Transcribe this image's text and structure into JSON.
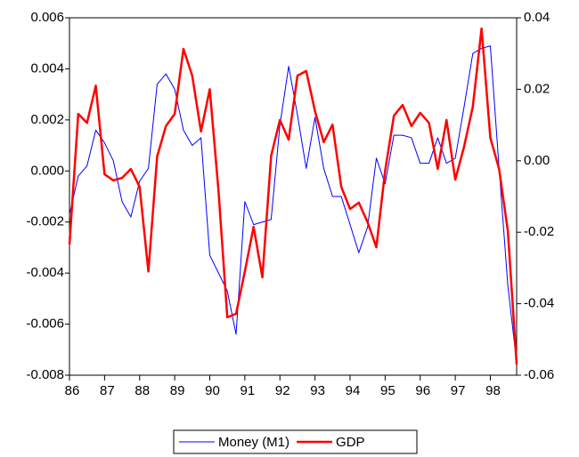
{
  "chart_data": {
    "type": "line",
    "x": [
      1986,
      1986.25,
      1986.5,
      1986.75,
      1987,
      1987.25,
      1987.5,
      1987.75,
      1988,
      1988.25,
      1988.5,
      1988.75,
      1989,
      1989.25,
      1989.5,
      1989.75,
      1990,
      1990.25,
      1990.5,
      1990.75,
      1991,
      1991.25,
      1991.5,
      1991.75,
      1992,
      1992.25,
      1992.5,
      1992.75,
      1993,
      1993.25,
      1993.5,
      1993.75,
      1994,
      1994.25,
      1994.5,
      1994.75,
      1995,
      1995.25,
      1995.5,
      1995.75,
      1996,
      1996.25,
      1996.5,
      1996.75,
      1997,
      1997.25,
      1997.5,
      1997.75,
      1998,
      1998.25,
      1998.5,
      1998.75
    ],
    "series": [
      {
        "name": "Money (M1)",
        "color": "#0000ff",
        "values": [
          -0.0017,
          -0.0002,
          0.0002,
          0.0016,
          0.0011,
          0.0004,
          -0.0012,
          -0.0018,
          -0.0004,
          0.0001,
          0.0034,
          0.0038,
          0.0032,
          0.0016,
          0.001,
          0.0013,
          -0.0033,
          -0.004,
          -0.0047,
          -0.0064,
          -0.0012,
          -0.0021,
          -0.002,
          -0.0019,
          0.0018,
          0.0041,
          0.0022,
          0.0001,
          0.0021,
          0.0001,
          -0.001,
          -0.001,
          -0.0021,
          -0.0032,
          -0.0022,
          0.0005,
          -0.0005,
          0.0014,
          0.0014,
          0.0013,
          0.0003,
          0.0003,
          0.0013,
          0.0003,
          0.0005,
          0.0025,
          0.0046,
          0.0048,
          0.0049,
          0.0001,
          -0.0045,
          -0.0075
        ]
      },
      {
        "name": "GDP",
        "color": "#ff0000",
        "axis": "y2",
        "values": [
          -0.0234,
          0.0131,
          0.0106,
          0.021,
          -0.0038,
          -0.0055,
          -0.0048,
          -0.0023,
          -0.0073,
          -0.031,
          0.0012,
          0.0097,
          0.0131,
          0.0313,
          0.0238,
          0.0082,
          0.02,
          -0.0085,
          -0.0438,
          -0.0428,
          -0.031,
          -0.0185,
          -0.0326,
          0.0014,
          0.0114,
          0.0059,
          0.0238,
          0.0251,
          0.0139,
          0.0052,
          0.0101,
          -0.0073,
          -0.0135,
          -0.0117,
          -0.0172,
          -0.0242,
          -0.0028,
          0.0126,
          0.0156,
          0.0097,
          0.0134,
          0.0106,
          -0.0023,
          0.0114,
          -0.0053,
          0.0039,
          0.0151,
          0.037,
          0.0064,
          -0.0023,
          -0.0197,
          -0.057
        ]
      }
    ],
    "xlim": [
      1986,
      1998.75
    ],
    "xticks": [
      {
        "value": 1986,
        "label": "86"
      },
      {
        "value": 1987,
        "label": "87"
      },
      {
        "value": 1988,
        "label": "88"
      },
      {
        "value": 1989,
        "label": "89"
      },
      {
        "value": 1990,
        "label": "90"
      },
      {
        "value": 1991,
        "label": "91"
      },
      {
        "value": 1992,
        "label": "92"
      },
      {
        "value": 1993,
        "label": "93"
      },
      {
        "value": 1994,
        "label": "94"
      },
      {
        "value": 1995,
        "label": "95"
      },
      {
        "value": 1996,
        "label": "96"
      },
      {
        "value": 1997,
        "label": "97"
      },
      {
        "value": 1998,
        "label": "98"
      }
    ],
    "ylim": [
      -0.008,
      0.006
    ],
    "yticks": [
      {
        "value": -0.008,
        "label": "-0.008"
      },
      {
        "value": -0.006,
        "label": "-0.006"
      },
      {
        "value": -0.004,
        "label": "-0.004"
      },
      {
        "value": -0.002,
        "label": "-0.002"
      },
      {
        "value": 0,
        "label": "0.000"
      },
      {
        "value": 0.002,
        "label": "0.002"
      },
      {
        "value": 0.004,
        "label": "0.004"
      },
      {
        "value": 0.006,
        "label": "0.006"
      }
    ],
    "y2lim": [
      -0.06,
      0.04
    ],
    "y2ticks": [
      {
        "value": -0.06,
        "label": "-0.06"
      },
      {
        "value": -0.04,
        "label": "-0.04"
      },
      {
        "value": -0.02,
        "label": "-0.02"
      },
      {
        "value": 0,
        "label": "0.00"
      },
      {
        "value": 0.02,
        "label": "0.02"
      },
      {
        "value": 0.04,
        "label": "0.04"
      }
    ],
    "legend": "bottom",
    "grid": false
  }
}
